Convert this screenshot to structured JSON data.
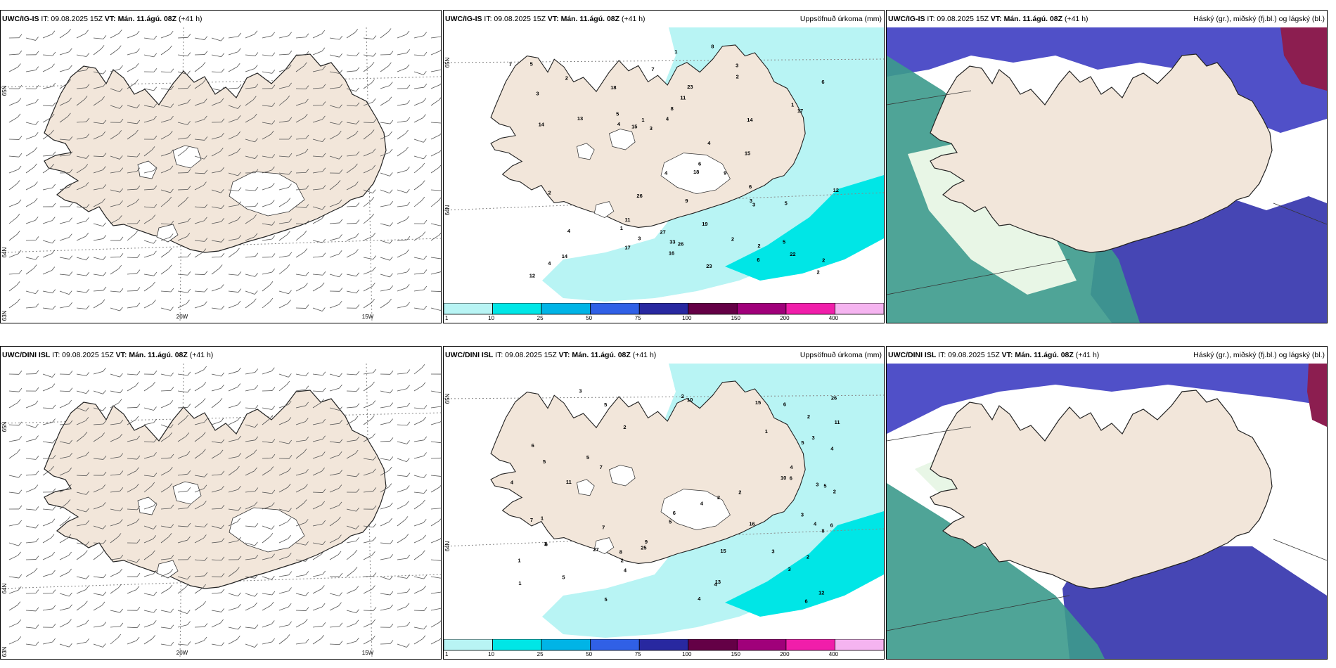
{
  "panels": [
    {
      "id": "wind-ig",
      "model": "UWC/IG-IS",
      "it_label": "IT: 09.08.2025 15Z",
      "vt_label": "VT: Mán. 11.ágú. 08Z",
      "lead": "(+41 h)",
      "right_title": "",
      "lat_labels": [
        "65N",
        "64N",
        "63N"
      ],
      "lon_labels": [
        "20W",
        "15W"
      ]
    },
    {
      "id": "precip-ig",
      "model": "UWC/IG-IS",
      "it_label": "IT: 09.08.2025 15Z",
      "vt_label": "VT: Mán. 11.ágú. 08Z",
      "lead": "(+41 h)",
      "right_title": "Uppsöfnuð úrkoma (mm)",
      "lat_labels": [
        "65N",
        "64N"
      ],
      "point_values": [
        "4",
        "5",
        "6",
        "9",
        "7",
        "8",
        "5",
        "3",
        "2",
        "1",
        "2",
        "4",
        "3",
        "1",
        "2",
        "5",
        "3",
        "2",
        "4",
        "6",
        "7",
        "14",
        "16",
        "9",
        "3",
        "2",
        "1",
        "11",
        "17",
        "19",
        "22",
        "26",
        "23",
        "12",
        "18",
        "23",
        "33",
        "14",
        "14",
        "27",
        "13",
        "11",
        "18",
        "17",
        "15",
        "15",
        "8",
        "26",
        "12",
        "2",
        "3",
        "4",
        "5",
        "6",
        "4",
        "2",
        "1",
        "3",
        "4",
        "6"
      ]
    },
    {
      "id": "cloud-ig",
      "model": "UWC/IG-IS",
      "it_label": "IT: 09.08.2025 15Z",
      "vt_label": "VT: Mán. 11.ágú. 08Z",
      "lead": "(+41 h)",
      "right_title": "Háský (gr.), miðský (fj.bl.) og lágský (bl.)"
    },
    {
      "id": "wind-dini",
      "model": "UWC/DINI ISL",
      "it_label": "IT: 09.08.2025 15Z",
      "vt_label": "VT: Mán. 11.ágú. 08Z",
      "lead": "(+41 h)",
      "right_title": "",
      "lat_labels": [
        "65N",
        "64N",
        "63N"
      ],
      "lon_labels": [
        "20W",
        "15W"
      ]
    },
    {
      "id": "precip-dini",
      "model": "UWC/DINI ISL",
      "it_label": "IT: 09.08.2025 15Z",
      "vt_label": "VT: Mán. 11.ágú. 08Z",
      "lead": "(+41 h)",
      "right_title": "Uppsöfnuð úrkoma (mm)",
      "lat_labels": [
        "65N",
        "64N"
      ],
      "point_values": [
        "5",
        "6",
        "6",
        "4",
        "4",
        "5",
        "6",
        "7",
        "5",
        "3",
        "2",
        "1",
        "2",
        "4",
        "3",
        "5",
        "6",
        "7",
        "3",
        "4",
        "2",
        "6",
        "12",
        "16",
        "11",
        "4",
        "5",
        "3",
        "1",
        "2",
        "8",
        "10",
        "6",
        "9",
        "5",
        "4",
        "15",
        "27",
        "25",
        "26",
        "13",
        "11",
        "15",
        "10",
        "7",
        "5",
        "2",
        "1",
        "3",
        "2",
        "1",
        "4",
        "2",
        "3",
        "6",
        "8",
        "4",
        "3",
        "2",
        "5"
      ]
    },
    {
      "id": "cloud-dini",
      "model": "UWC/DINI ISL",
      "it_label": "IT: 09.08.2025 15Z",
      "vt_label": "VT: Mán. 11.ágú. 08Z",
      "lead": "(+41 h)",
      "right_title": "Háský (gr.), miðský (fj.bl.) og lágský (bl.)"
    }
  ],
  "precip_legend": {
    "ticks": [
      "1",
      "10",
      "25",
      "50",
      "75",
      "100",
      "150",
      "200",
      "400"
    ],
    "colors": [
      "#b8f4f4",
      "#00e6e6",
      "#00b4e6",
      "#3060e6",
      "#2828a0",
      "#640046",
      "#a0007a",
      "#f01eaa",
      "#f5b4f0"
    ]
  },
  "colors": {
    "land": "#f2e6da",
    "sea": "#ffffff",
    "precip_light": "#b8f4f4",
    "precip_mid": "#00e6e6",
    "cloud_high": "#3c9a8c",
    "cloud_mid": "#5050c8",
    "cloud_low": "#4646b4",
    "cloud_dense": "#8c1e50"
  }
}
